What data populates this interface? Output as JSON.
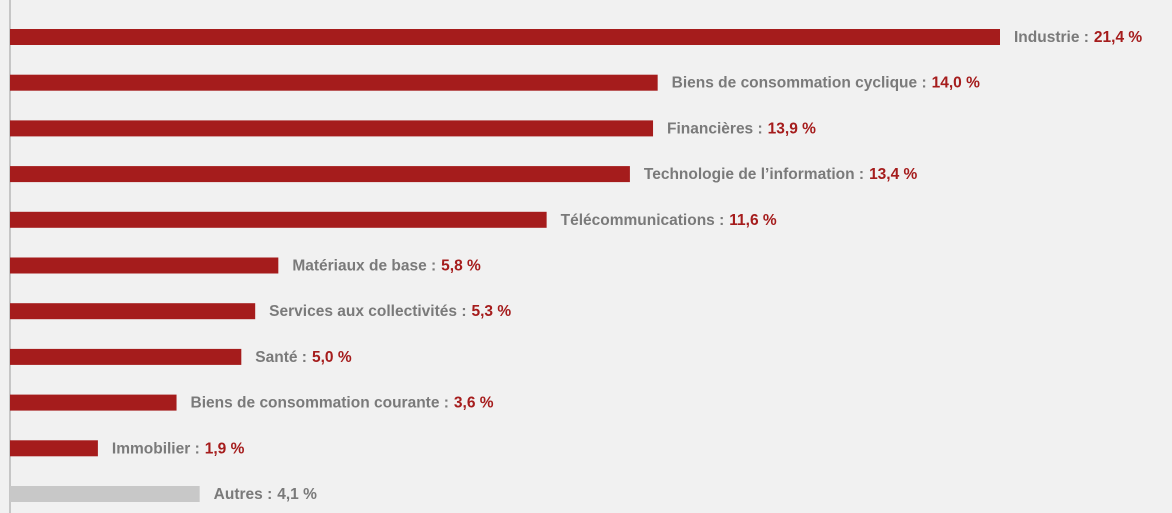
{
  "chart_data": {
    "type": "hbar",
    "categories": [
      "Industrie :",
      "Biens de consommation cyclique :",
      "Financières :",
      "Technologie de l’information :",
      "Télécommunications :",
      "Matériaux de base :",
      "Services aux collectivités :",
      "Santé :",
      "Biens de consommation courante :",
      "Immobilier :",
      "Autres :"
    ],
    "values": [
      21.4,
      14.0,
      13.9,
      13.4,
      11.6,
      5.8,
      5.3,
      5.0,
      3.6,
      1.9,
      4.1
    ],
    "value_labels": [
      "21,4 %",
      "14,0 %",
      "13,9 %",
      "13,4 %",
      "11,6 %",
      "5,8 %",
      "5,3 %",
      "5,0 %",
      "3,6 %",
      "1,9 %",
      "4,1 %"
    ],
    "colors": [
      "#a51c1c",
      "#a51c1c",
      "#a51c1c",
      "#a51c1c",
      "#a51c1c",
      "#a51c1c",
      "#a51c1c",
      "#a51c1c",
      "#a51c1c",
      "#a51c1c",
      "#c8c8c8"
    ],
    "value_label_colors": [
      "#a51c1c",
      "#a51c1c",
      "#a51c1c",
      "#a51c1c",
      "#a51c1c",
      "#a51c1c",
      "#a51c1c",
      "#a51c1c",
      "#a51c1c",
      "#a51c1c",
      "#7a7a7a"
    ],
    "xlim": [
      0,
      21.4
    ]
  }
}
